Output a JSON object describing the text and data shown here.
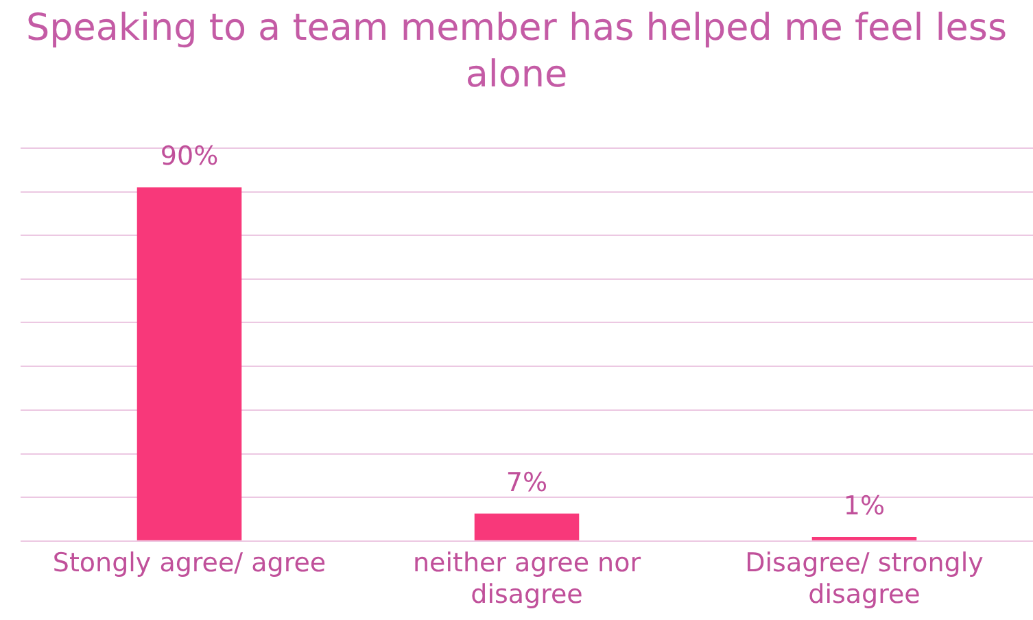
{
  "chart_data": {
    "type": "bar",
    "title": "Speaking to a team member has helped me feel less alone",
    "categories": [
      "Stongly agree/ agree",
      "neither agree nor disagree",
      "Disagree/ strongly disagree"
    ],
    "values": [
      90,
      7,
      1
    ],
    "color": "#f8387a",
    "value_labels": [
      "90%",
      "7%",
      "1%"
    ],
    "ylim": [
      0,
      100
    ],
    "yticks": [
      {
        "value": 0,
        "label": null
      },
      {
        "value": 11.1,
        "label": null
      },
      {
        "value": 22.2,
        "label": null
      },
      {
        "value": 33.3,
        "label": null
      },
      {
        "value": 44.4,
        "label": null
      },
      {
        "value": 55.6,
        "label": null
      },
      {
        "value": 66.7,
        "label": null
      },
      {
        "value": 77.8,
        "label": null
      },
      {
        "value": 88.9,
        "label": null
      },
      {
        "value": 100,
        "label": null
      }
    ],
    "grid": "y",
    "legend": false,
    "tick_labels": "x"
  }
}
